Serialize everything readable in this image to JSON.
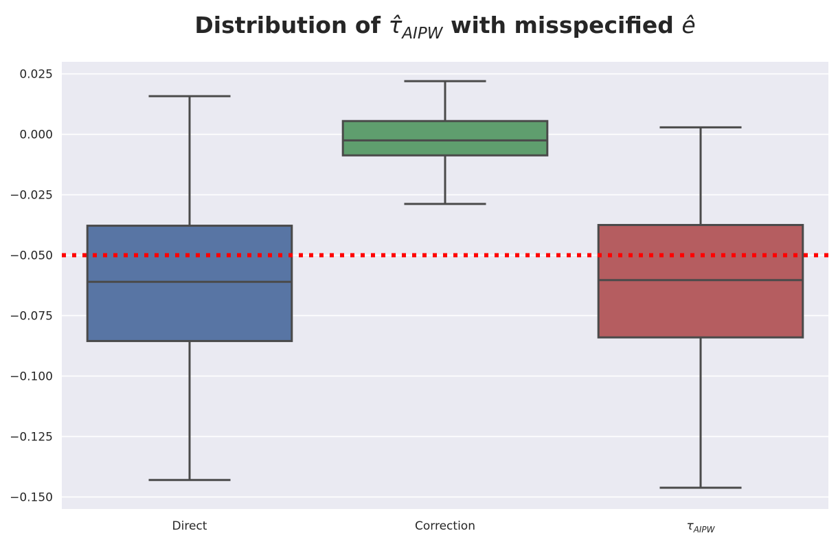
{
  "chart_data": {
    "type": "box",
    "title": {
      "prefix": "Distribution of ",
      "symbol": "τ̂",
      "symbol_sub": "AIPW",
      "middle": " with misspecified ",
      "symbol2": "ê"
    },
    "xlabel": "",
    "ylabel": "",
    "ylim": [
      -0.155,
      0.03
    ],
    "yticks": [
      0.025,
      0.0,
      -0.025,
      -0.05,
      -0.075,
      -0.1,
      -0.125,
      -0.15
    ],
    "ytick_labels": [
      "0.025",
      "0.000",
      "−0.025",
      "−0.050",
      "−0.075",
      "−0.100",
      "−0.125",
      "−0.150"
    ],
    "categories": [
      {
        "label": "Direct",
        "sub": ""
      },
      {
        "label": "Correction",
        "sub": ""
      },
      {
        "label": "τ",
        "sub": "AIPW"
      }
    ],
    "boxes": [
      {
        "whisker_low": -0.143,
        "q1": -0.0855,
        "median": -0.061,
        "q3": -0.0378,
        "whisker_high": 0.0158,
        "color": "#5875a4"
      },
      {
        "whisker_low": -0.0288,
        "q1": -0.0087,
        "median": -0.0025,
        "q3": 0.0055,
        "whisker_high": 0.022,
        "color": "#5f9e6e"
      },
      {
        "whisker_low": -0.1462,
        "q1": -0.084,
        "median": -0.0603,
        "q3": -0.0375,
        "whisker_high": 0.0029,
        "color": "#b55d60"
      }
    ],
    "reference_line": {
      "y": -0.05,
      "color": "#ff0000",
      "style": "dotted"
    },
    "grid": true,
    "background": "#eaeaf2",
    "line_color": "#4a4a4a"
  }
}
